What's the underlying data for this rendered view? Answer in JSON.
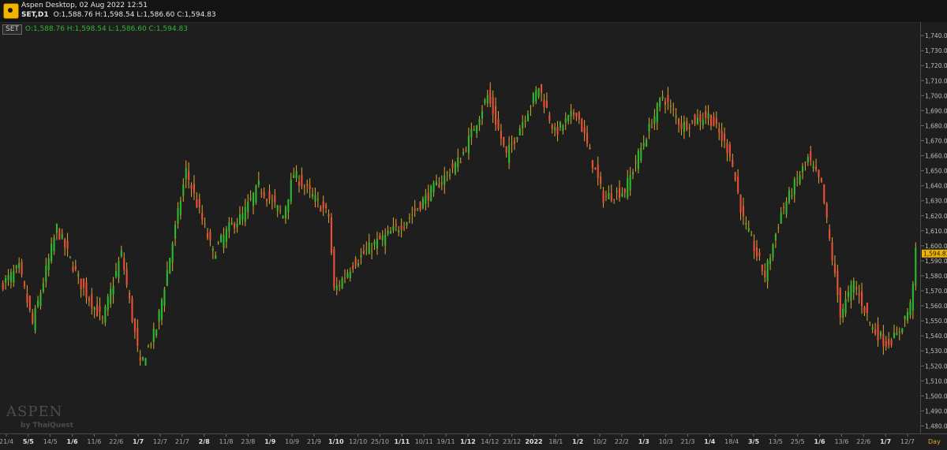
{
  "window": {
    "title": "Aspen Desktop, 02 Aug 2022 12:51",
    "symbol": "SET,D1",
    "ohlc": "O:1,588.76 H:1,598.54 L:1,586.60 C:1,594.83"
  },
  "legend": {
    "tag": "SET",
    "ohlc": "O:1,588.76 H:1,598.54 L:1,586.60 C:1,594.83"
  },
  "watermark": {
    "brand": "ASPEN",
    "sub": "by ThaiQuest"
  },
  "colors": {
    "up": "#2fb82f",
    "down": "#e8503a",
    "background": "#1e1e1e",
    "last_price_bg": "#f0b400"
  },
  "chart_data": {
    "type": "candlestick",
    "symbol": "SET",
    "timeframe": "D1",
    "y_range": [
      1475,
      1749
    ],
    "y_ticks": [
      1480,
      1490,
      1500,
      1510,
      1520,
      1530,
      1540,
      1550,
      1560,
      1570,
      1580,
      1590,
      1600,
      1610,
      1620,
      1630,
      1640,
      1650,
      1660,
      1670,
      1680,
      1690,
      1700,
      1710,
      1720,
      1730,
      1740
    ],
    "last_price": 1594.83,
    "last_price_label": "1,594.83",
    "x_axis_unit": "Day",
    "x_labels": [
      "21/4",
      "5/5",
      "14/5",
      "1/6",
      "11/6",
      "22/6",
      "1/7",
      "12/7",
      "21/7",
      "2/8",
      "11/8",
      "23/8",
      "1/9",
      "10/9",
      "21/9",
      "1/10",
      "12/10",
      "25/10",
      "1/11",
      "10/11",
      "19/11",
      "1/12",
      "14/12",
      "23/12",
      "2022",
      "18/1",
      "1/2",
      "10/2",
      "22/2",
      "1/3",
      "10/3",
      "21/3",
      "1/4",
      "18/4",
      "3/5",
      "13/5",
      "25/5",
      "1/6",
      "13/6",
      "22/6",
      "1/7",
      "12/7"
    ],
    "x_labels_bold": [
      "5/5",
      "1/6",
      "1/7",
      "2/8",
      "1/9",
      "1/10",
      "1/11",
      "1/12",
      "2022",
      "1/2",
      "1/3",
      "1/4",
      "3/5",
      "1/6",
      "1/7"
    ],
    "anchors": [
      [
        0,
        1575
      ],
      [
        6,
        1585
      ],
      [
        11,
        1548
      ],
      [
        20,
        1612
      ],
      [
        29,
        1574
      ],
      [
        37,
        1550
      ],
      [
        44,
        1595
      ],
      [
        51,
        1520
      ],
      [
        57,
        1545
      ],
      [
        68,
        1650
      ],
      [
        78,
        1595
      ],
      [
        84,
        1612
      ],
      [
        89,
        1620
      ],
      [
        95,
        1640
      ],
      [
        104,
        1620
      ],
      [
        108,
        1648
      ],
      [
        121,
        1620
      ],
      [
        123,
        1570
      ],
      [
        130,
        1588
      ],
      [
        137,
        1600
      ],
      [
        142,
        1606
      ],
      [
        150,
        1617
      ],
      [
        156,
        1630
      ],
      [
        170,
        1658
      ],
      [
        180,
        1700
      ],
      [
        187,
        1660
      ],
      [
        199,
        1706
      ],
      [
        205,
        1675
      ],
      [
        213,
        1690
      ],
      [
        223,
        1632
      ],
      [
        231,
        1637
      ],
      [
        237,
        1665
      ],
      [
        245,
        1700
      ],
      [
        252,
        1680
      ],
      [
        262,
        1687
      ],
      [
        270,
        1662
      ],
      [
        275,
        1617
      ],
      [
        283,
        1580
      ],
      [
        289,
        1622
      ],
      [
        293,
        1637
      ],
      [
        299,
        1658
      ],
      [
        304,
        1640
      ],
      [
        311,
        1555
      ],
      [
        316,
        1575
      ],
      [
        323,
        1545
      ],
      [
        328,
        1535
      ],
      [
        332,
        1540
      ],
      [
        337,
        1560
      ],
      [
        339,
        1594.83
      ]
    ]
  }
}
